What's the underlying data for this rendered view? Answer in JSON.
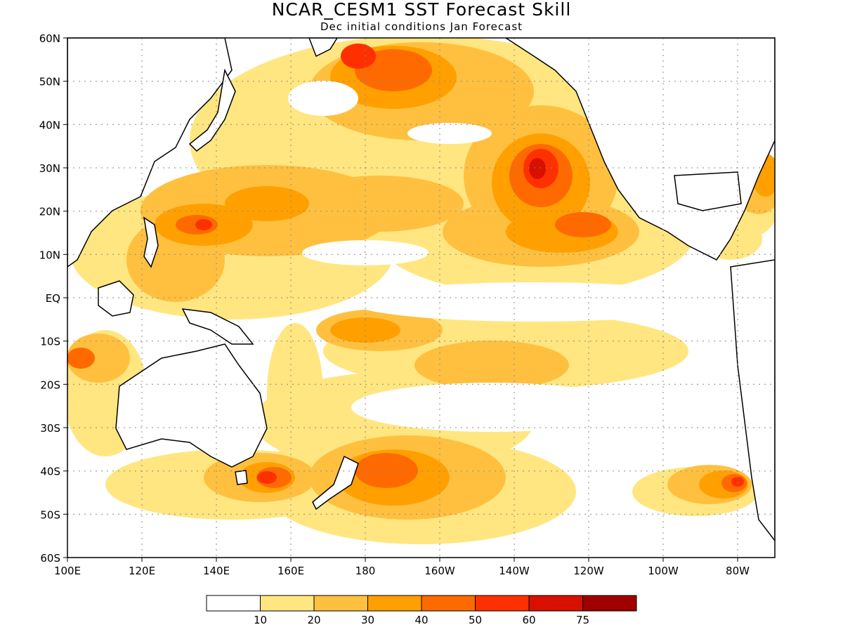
{
  "title": "NCAR_CESM1  SST Forecast Skill",
  "subtitle": "Dec initial conditions   Jan Forecast",
  "axes": {
    "lat_labels": [
      "60N",
      "50N",
      "40N",
      "30N",
      "20N",
      "10N",
      "EQ",
      "10S",
      "20S",
      "30S",
      "40S",
      "50S",
      "60S"
    ],
    "lon_labels": [
      "100E",
      "120E",
      "140E",
      "160E",
      "180",
      "160W",
      "140W",
      "120W",
      "100W",
      "80W"
    ]
  },
  "colors": {
    "levels": [
      "#ffffff",
      "#ffe680",
      "#ffc040",
      "#ffa000",
      "#ff6a00",
      "#ff3000",
      "#d81000",
      "#a00000"
    ],
    "land_outline": "#000000"
  },
  "legend": {
    "labels": [
      "10",
      "20",
      "30",
      "40",
      "50",
      "60",
      "75"
    ]
  },
  "map_data": {
    "type": "filled-contour",
    "lat_range": [
      -60,
      60
    ],
    "lon_range": [
      100,
      290
    ],
    "units": "skill"
  }
}
